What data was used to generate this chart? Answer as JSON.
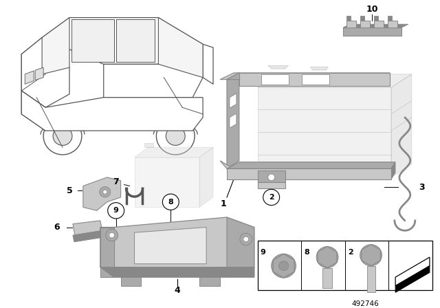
{
  "background_color": "#ffffff",
  "part_number": "492746",
  "fig_width": 6.4,
  "fig_height": 4.48,
  "dpi": 100,
  "car_color": "#f0f0f0",
  "car_line_color": "#555555",
  "part_gray_light": "#c8c8c8",
  "part_gray_mid": "#aaaaaa",
  "part_gray_dark": "#888888",
  "battery_color": "#d8d8d8",
  "battery_edge": "#bbbbbb",
  "label_fontsize": 9,
  "circle_label_fontsize": 8
}
